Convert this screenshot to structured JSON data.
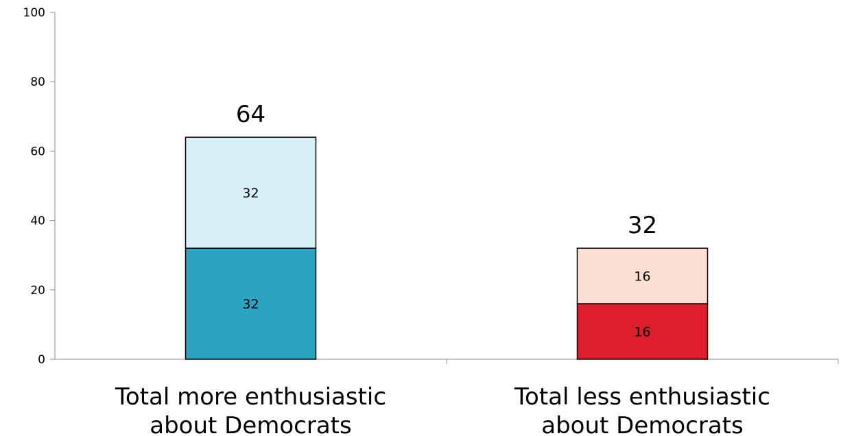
{
  "chart_data": {
    "type": "bar",
    "stacked": true,
    "categories": [
      [
        "Total more enthusiastic",
        "about Democrats"
      ],
      [
        "Total less enthusiastic",
        "about Democrats"
      ]
    ],
    "bars": [
      {
        "total": 64,
        "segments": [
          {
            "value": 32,
            "color": "#2ca3c0"
          },
          {
            "value": 32,
            "color": "#d6eef5"
          }
        ]
      },
      {
        "total": 32,
        "segments": [
          {
            "value": 16,
            "color": "#dc1f2a"
          },
          {
            "value": 16,
            "color": "#fadfd2"
          }
        ]
      }
    ],
    "ylim": [
      0,
      100
    ],
    "yticks": [
      0,
      20,
      40,
      60,
      80,
      100
    ],
    "grid": false,
    "legend": "none",
    "title": "",
    "xlabel": "",
    "ylabel": ""
  }
}
